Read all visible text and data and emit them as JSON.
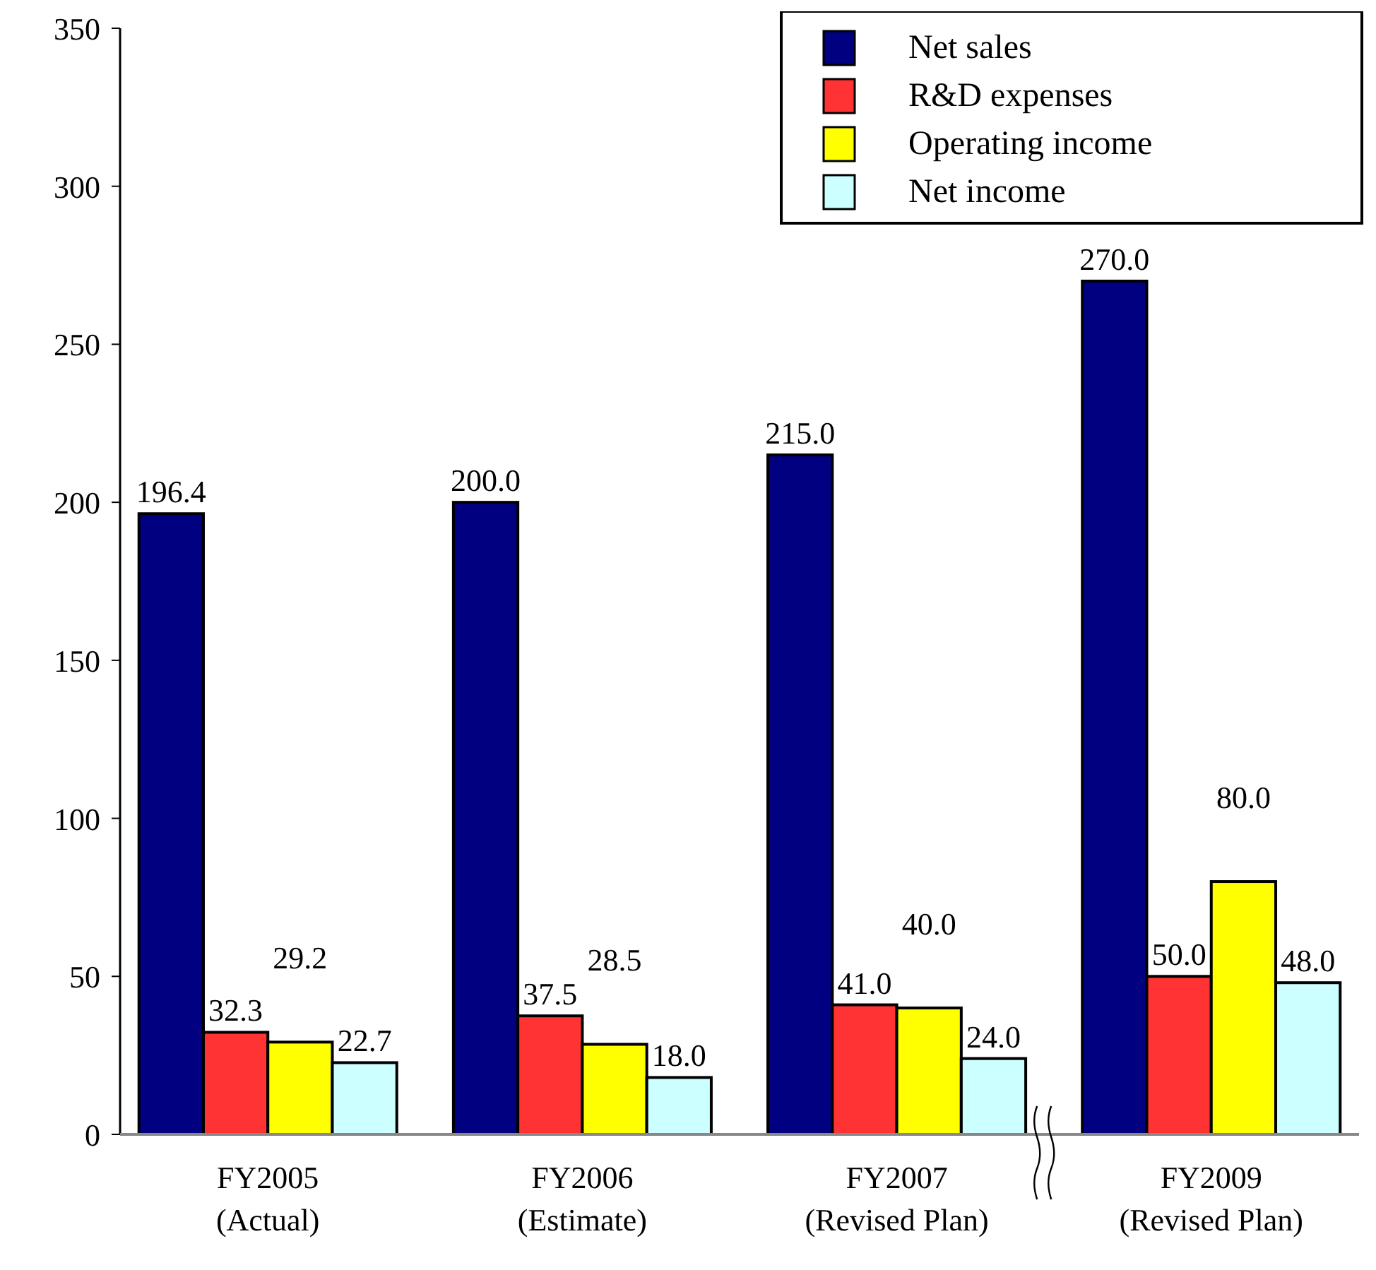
{
  "chart_data": {
    "type": "bar",
    "categories": [
      "FY2005\n(Actual)",
      "FY2006\n(Estimate)",
      "FY2007\n(Revised Plan)",
      "FY2009\n(Revised Plan)"
    ],
    "series": [
      {
        "name": "Net sales",
        "color": "#000080",
        "values": [
          196.4,
          200.0,
          215.0,
          270.0
        ],
        "value_labels": [
          "196.4",
          "200.0",
          "215.0",
          "270.0"
        ]
      },
      {
        "name": "R&D expenses",
        "color": "#ff3333",
        "values": [
          32.3,
          37.5,
          41.0,
          50.0
        ],
        "value_labels": [
          "32.3",
          "37.5",
          "41.0",
          "50.0"
        ]
      },
      {
        "name": "Operating income",
        "color": "#ffff00",
        "values": [
          29.2,
          28.5,
          40.0,
          80.0
        ],
        "value_labels": [
          "29.2",
          "28.5",
          "40.0",
          "80.0"
        ]
      },
      {
        "name": "Net income",
        "color": "#ccffff",
        "values": [
          22.7,
          18.0,
          24.0,
          48.0
        ],
        "value_labels": [
          "22.7",
          "18.0",
          "24.0",
          "48.0"
        ]
      }
    ],
    "ylim": [
      0,
      350
    ],
    "yticks": [
      0,
      50,
      100,
      150,
      200,
      250,
      300,
      350
    ],
    "grid": false,
    "legend": "top right"
  }
}
